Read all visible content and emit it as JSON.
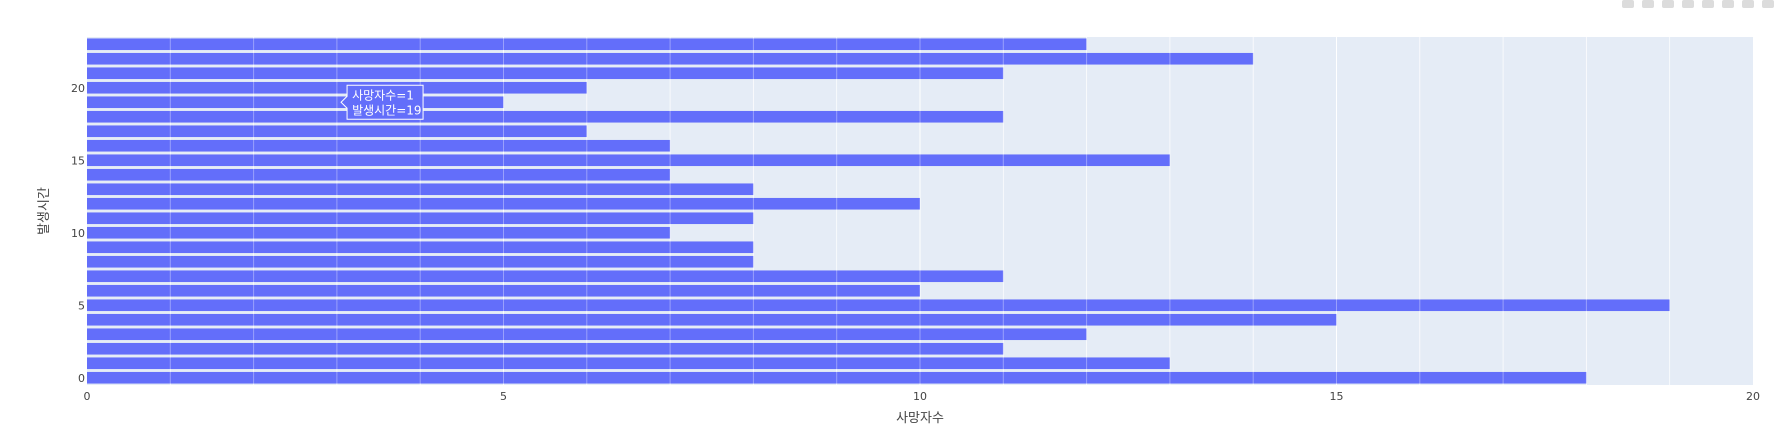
{
  "chart_data": {
    "type": "bar",
    "orientation": "horizontal",
    "xlabel": "사망자수",
    "ylabel": "발생시간",
    "xlim": [
      0,
      20
    ],
    "ylim": [
      -0.5,
      23.5
    ],
    "x_ticks": [
      0,
      5,
      10,
      15,
      20
    ],
    "y_ticks": [
      0,
      5,
      10,
      15,
      20
    ],
    "grid": true,
    "bar_color": "#636efa",
    "plot_bg": "#e5ecf6",
    "categories": [
      0,
      1,
      2,
      3,
      4,
      5,
      6,
      7,
      8,
      9,
      10,
      11,
      12,
      13,
      14,
      15,
      16,
      17,
      18,
      19,
      20,
      21,
      22,
      23
    ],
    "values": [
      18,
      13,
      11,
      12,
      15,
      19,
      10,
      11,
      8,
      8,
      7,
      8,
      10,
      8,
      7,
      13,
      7,
      6,
      11,
      5,
      6,
      11,
      14,
      12
    ],
    "hover_tooltip": {
      "line1": "사망자수=1",
      "line2": "발생시간=19",
      "x": 1,
      "y": 19
    }
  }
}
